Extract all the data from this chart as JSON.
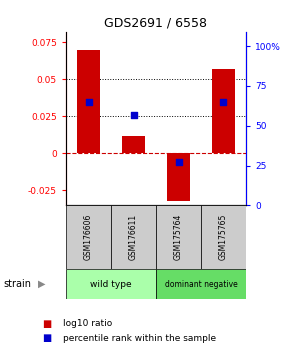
{
  "title": "GDS2691 / 6558",
  "samples": [
    "GSM176606",
    "GSM176611",
    "GSM175764",
    "GSM175765"
  ],
  "log10_ratio": [
    0.07,
    0.012,
    -0.032,
    0.057
  ],
  "percentile_rank": [
    65,
    57,
    27,
    65
  ],
  "bar_color": "#cc0000",
  "dot_color": "#0000cc",
  "ylim_left": [
    -0.035,
    0.082
  ],
  "yticks_left": [
    -0.025,
    0,
    0.025,
    0.05,
    0.075
  ],
  "ylim_right": [
    0,
    109
  ],
  "yticks_right": [
    0,
    25,
    50,
    75,
    100
  ],
  "groups": [
    {
      "label": "wild type",
      "indices": [
        0,
        1
      ],
      "color": "#aaffaa"
    },
    {
      "label": "dominant negative",
      "indices": [
        2,
        3
      ],
      "color": "#66dd66"
    }
  ],
  "strain_label": "strain",
  "legend_ratio_label": "log10 ratio",
  "legend_pct_label": "percentile rank within the sample",
  "bar_width": 0.5,
  "dot_size": 25
}
